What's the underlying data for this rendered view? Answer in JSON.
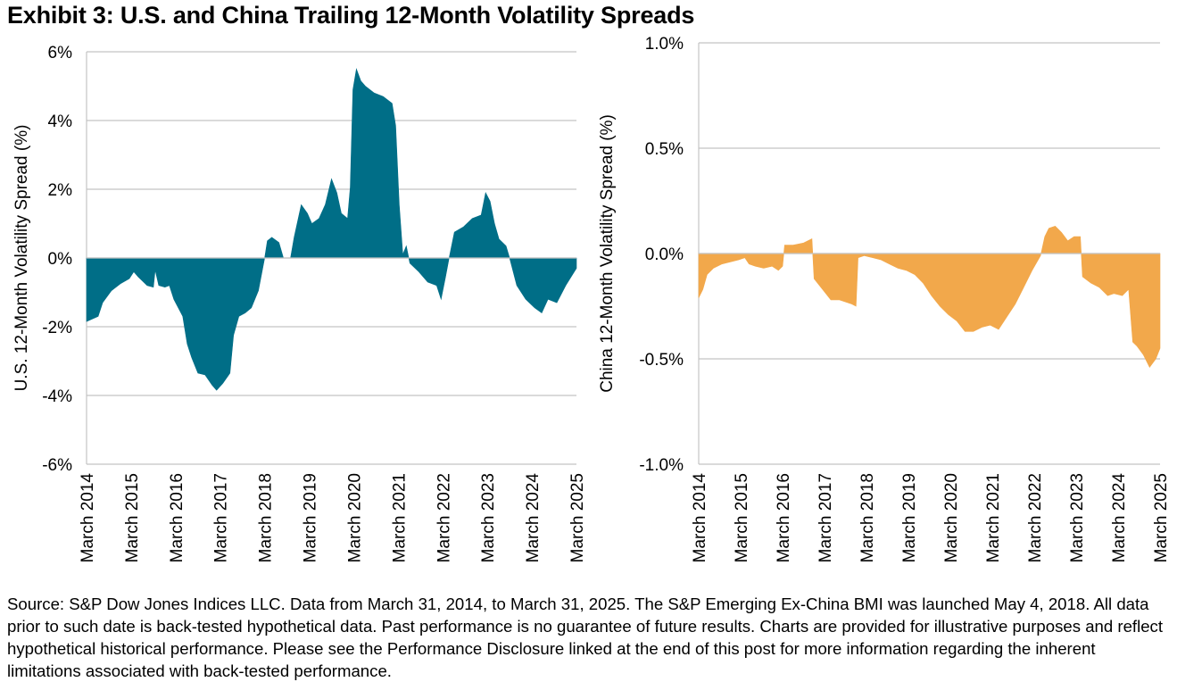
{
  "title": "Exhibit 3: U.S. and China Trailing 12-Month Volatility Spreads",
  "footer": "Source: S&P Dow Jones Indices LLC. Data from March 31, 2014, to March 31, 2025. The S&P Emerging Ex-China BMI was launched May 4, 2018. All data prior to such date is back-tested hypothetical data. Past performance is no guarantee of future results. Charts are provided for illustrative purposes and reflect hypothetical historical performance. Please see the Performance Disclosure linked at the end of this post for more information regarding the inherent limitations associated with back-tested performance.",
  "chart_data": [
    {
      "type": "area",
      "title": "",
      "xlabel": "",
      "ylabel": "U.S. 12-Month Volatility Spread (%)",
      "color": "#006E87",
      "ylim": [
        -6,
        6
      ],
      "xlim": [
        2014.25,
        2025.25
      ],
      "yticks": [
        6,
        4,
        2,
        0,
        -2,
        -4,
        -6
      ],
      "ytick_labels": [
        "6%",
        "4%",
        "2%",
        "0%",
        "-2%",
        "-4%",
        "-6%"
      ],
      "xtick_labels": [
        "March 2014",
        "March 2015",
        "March 2016",
        "March 2017",
        "March 2018",
        "March 2019",
        "March 2020",
        "March 2021",
        "March 2022",
        "March 2023",
        "March 2024",
        "March 2025"
      ],
      "grid": true,
      "x": [
        2014.25,
        2014.51,
        2014.61,
        2014.81,
        2015.01,
        2015.21,
        2015.31,
        2015.41,
        2015.61,
        2015.75,
        2015.79,
        2015.87,
        2016.01,
        2016.11,
        2016.21,
        2016.41,
        2016.51,
        2016.61,
        2016.75,
        2016.91,
        2017.07,
        2017.17,
        2017.31,
        2017.47,
        2017.55,
        2017.67,
        2017.81,
        2017.95,
        2018.11,
        2018.25,
        2018.31,
        2018.41,
        2018.57,
        2018.67,
        2018.83,
        2018.91,
        2019.07,
        2019.21,
        2019.31,
        2019.47,
        2019.61,
        2019.75,
        2019.87,
        2019.97,
        2020.11,
        2020.17,
        2020.23,
        2020.31,
        2020.41,
        2020.51,
        2020.71,
        2020.91,
        2021.11,
        2021.19,
        2021.27,
        2021.35,
        2021.43,
        2021.51,
        2021.71,
        2021.91,
        2022.11,
        2022.21,
        2022.31,
        2022.39,
        2022.51,
        2022.71,
        2022.91,
        2023.11,
        2023.21,
        2023.31,
        2023.41,
        2023.51,
        2023.67,
        2023.75,
        2023.91,
        2024.11,
        2024.31,
        2024.47,
        2024.61,
        2024.81,
        2025.01,
        2025.25
      ],
      "values": [
        -1.85,
        -1.7,
        -1.3,
        -0.95,
        -0.75,
        -0.6,
        -0.4,
        -0.55,
        -0.8,
        -0.85,
        -0.35,
        -0.8,
        -0.85,
        -0.8,
        -1.2,
        -1.7,
        -2.5,
        -2.9,
        -3.35,
        -3.4,
        -3.7,
        -3.85,
        -3.65,
        -3.35,
        -2.25,
        -1.7,
        -1.6,
        -1.45,
        -0.95,
        0.0,
        0.5,
        0.6,
        0.45,
        0.0,
        0.0,
        0.6,
        1.55,
        1.3,
        1.0,
        1.15,
        1.55,
        2.3,
        1.9,
        1.3,
        1.15,
        2.05,
        4.9,
        5.5,
        5.15,
        5.0,
        4.8,
        4.7,
        4.5,
        3.85,
        1.55,
        0.1,
        0.35,
        -0.15,
        -0.4,
        -0.7,
        -0.8,
        -1.2,
        -0.55,
        0.0,
        0.75,
        0.9,
        1.15,
        1.25,
        1.9,
        1.65,
        1.0,
        0.55,
        0.35,
        0.0,
        -0.8,
        -1.2,
        -1.45,
        -1.6,
        -1.2,
        -1.3,
        -0.8,
        -0.3
      ]
    },
    {
      "type": "area",
      "title": "",
      "xlabel": "",
      "ylabel": "China 12-Month Volatility Spread (%)",
      "color": "#F2A84B",
      "ylim": [
        -1.0,
        1.0
      ],
      "xlim": [
        2014.25,
        2025.25
      ],
      "yticks": [
        1.0,
        0.5,
        0.0,
        -0.5,
        -1.0
      ],
      "ytick_labels": [
        "1.0%",
        "0.5%",
        "0.0%",
        "-0.5%",
        "-1.0%"
      ],
      "xtick_labels": [
        "March 2014",
        "March 2015",
        "March 2016",
        "March 2017",
        "March 2018",
        "March 2019",
        "March 2020",
        "March 2021",
        "March 2022",
        "March 2023",
        "March 2024",
        "March 2025"
      ],
      "grid": true,
      "x": [
        2014.25,
        2014.35,
        2014.45,
        2014.6,
        2014.8,
        2015.0,
        2015.2,
        2015.35,
        2015.45,
        2015.6,
        2015.8,
        2016.0,
        2016.15,
        2016.25,
        2016.3,
        2016.5,
        2016.75,
        2016.95,
        2017.0,
        2017.2,
        2017.4,
        2017.6,
        2017.9,
        2018.0,
        2018.05,
        2018.2,
        2018.4,
        2018.6,
        2018.8,
        2019.0,
        2019.2,
        2019.4,
        2019.6,
        2019.8,
        2020.0,
        2020.2,
        2020.4,
        2020.6,
        2020.8,
        2021.0,
        2021.2,
        2021.4,
        2021.6,
        2021.8,
        2022.0,
        2022.2,
        2022.4,
        2022.5,
        2022.6,
        2022.75,
        2022.9,
        2023.05,
        2023.2,
        2023.35,
        2023.4,
        2023.6,
        2023.8,
        2024.0,
        2024.15,
        2024.35,
        2024.5,
        2024.6,
        2024.7,
        2024.85,
        2025.0,
        2025.15,
        2025.25
      ],
      "values": [
        -0.21,
        -0.17,
        -0.1,
        -0.07,
        -0.05,
        -0.04,
        -0.03,
        -0.02,
        -0.05,
        -0.06,
        -0.07,
        -0.06,
        -0.08,
        -0.06,
        0.04,
        0.04,
        0.05,
        0.07,
        -0.12,
        -0.17,
        -0.22,
        -0.22,
        -0.24,
        -0.25,
        -0.02,
        -0.01,
        -0.02,
        -0.03,
        -0.05,
        -0.07,
        -0.08,
        -0.1,
        -0.14,
        -0.2,
        -0.25,
        -0.29,
        -0.32,
        -0.37,
        -0.37,
        -0.35,
        -0.34,
        -0.36,
        -0.3,
        -0.24,
        -0.16,
        -0.08,
        -0.01,
        0.08,
        0.12,
        0.13,
        0.1,
        0.06,
        0.08,
        0.08,
        -0.11,
        -0.14,
        -0.16,
        -0.2,
        -0.19,
        -0.2,
        -0.17,
        -0.42,
        -0.44,
        -0.48,
        -0.54,
        -0.5,
        -0.45
      ]
    }
  ]
}
